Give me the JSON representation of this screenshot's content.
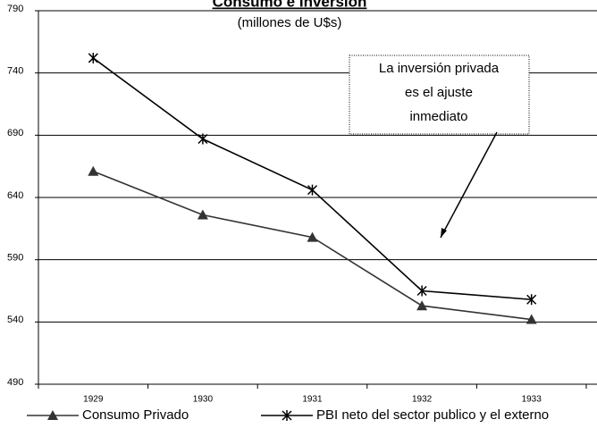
{
  "chart_data": {
    "type": "line",
    "title": "Consumo e Inversión",
    "subtitle": "(millones de U$s)",
    "categories": [
      "1929",
      "1930",
      "1931",
      "1932",
      "1933"
    ],
    "series": [
      {
        "name": "Consumo Privado",
        "color": "#333333",
        "marker": "triangle",
        "values": [
          661,
          626,
          608,
          553,
          542
        ]
      },
      {
        "name": "PBI neto del sector publico y el externo",
        "color": "#000000",
        "marker": "asterisk",
        "values": [
          752,
          687,
          646,
          565,
          558
        ]
      }
    ],
    "ylim": [
      490,
      790
    ],
    "yticks": [
      490,
      540,
      590,
      640,
      690,
      740,
      790
    ],
    "grid": true,
    "annotation": [
      "La inversión privada",
      "es el ajuste",
      "inmediato"
    ]
  }
}
